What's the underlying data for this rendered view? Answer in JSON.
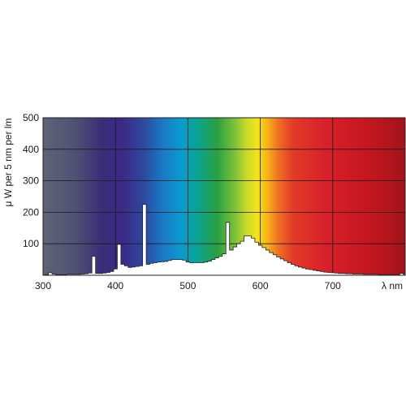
{
  "chart_data": {
    "type": "area",
    "title": "",
    "xlabel": "λ nm",
    "ylabel": "μ W per 5 nm per lm",
    "xlim": [
      300,
      800
    ],
    "ylim": [
      0,
      500
    ],
    "x_ticks": [
      300,
      400,
      500,
      600,
      700
    ],
    "y_ticks": [
      100,
      200,
      300,
      400,
      500
    ],
    "x_tick_labels": [
      "300",
      "400",
      "500",
      "600",
      "700"
    ],
    "y_tick_labels": [
      "100",
      "200",
      "300",
      "400",
      "500"
    ],
    "grid": true,
    "background": "visible spectrum gradient",
    "series": [
      {
        "x": [
          305,
          310,
          315,
          320,
          325,
          330,
          335,
          340,
          345,
          350,
          355,
          360,
          365,
          370,
          375,
          380,
          385,
          390,
          395,
          400,
          405,
          410,
          415,
          420,
          425,
          430,
          435,
          440,
          445,
          450,
          455,
          460,
          465,
          470,
          475,
          480,
          485,
          490,
          495,
          500,
          505,
          510,
          515,
          520,
          525,
          530,
          535,
          540,
          545,
          550,
          555,
          560,
          565,
          570,
          575,
          580,
          585,
          590,
          595,
          600,
          605,
          610,
          615,
          620,
          625,
          630,
          635,
          640,
          645,
          650,
          655,
          660,
          665,
          670,
          675,
          680,
          685,
          690,
          695,
          700,
          705,
          710,
          715,
          720,
          725,
          730,
          735,
          740,
          745,
          750,
          755,
          760,
          765,
          770,
          775,
          780,
          785,
          790,
          795,
          800
        ],
        "values": [
          2,
          8,
          4,
          2,
          2,
          2,
          3,
          3,
          3,
          3,
          4,
          5,
          7,
          60,
          6,
          6,
          7,
          9,
          12,
          20,
          98,
          35,
          30,
          25,
          26,
          28,
          30,
          225,
          35,
          38,
          40,
          42,
          43,
          44,
          47,
          50,
          50,
          50,
          48,
          42,
          40,
          40,
          40,
          40,
          42,
          45,
          50,
          55,
          60,
          68,
          168,
          80,
          90,
          100,
          108,
          125,
          125,
          118,
          105,
          95,
          88,
          80,
          72,
          65,
          58,
          52,
          46,
          40,
          35,
          30,
          26,
          23,
          20,
          18,
          16,
          14,
          12,
          10,
          9,
          8,
          7,
          6,
          6,
          5,
          5,
          4,
          4,
          4,
          3,
          3,
          3,
          3,
          2,
          2,
          2,
          2,
          2,
          2,
          6,
          3
        ]
      }
    ]
  }
}
